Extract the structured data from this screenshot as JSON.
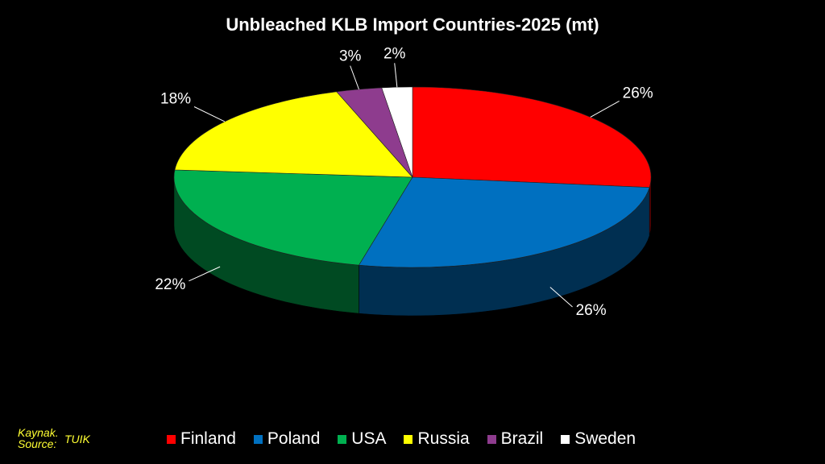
{
  "chart_data": {
    "type": "pie",
    "title": "Unbleached KLB Import Countries-2025 (mt)",
    "categories": [
      "Finland",
      "Poland",
      "USA",
      "Russia",
      "Brazil",
      "Sweden"
    ],
    "values": [
      26,
      26,
      22,
      18,
      3,
      2
    ],
    "labels": [
      "26%",
      "26%",
      "22%",
      "18%",
      "3%",
      "2%"
    ],
    "colors": [
      "#ff0000",
      "#0070c0",
      "#00b050",
      "#ffff00",
      "#8e3c8e",
      "#ffffff"
    ],
    "style": "3d-exploded-slightly",
    "legend_position": "bottom"
  },
  "footer": {
    "source_line1": "Kaynak.",
    "source_line2": "Source:",
    "source_value": "TUIK"
  }
}
